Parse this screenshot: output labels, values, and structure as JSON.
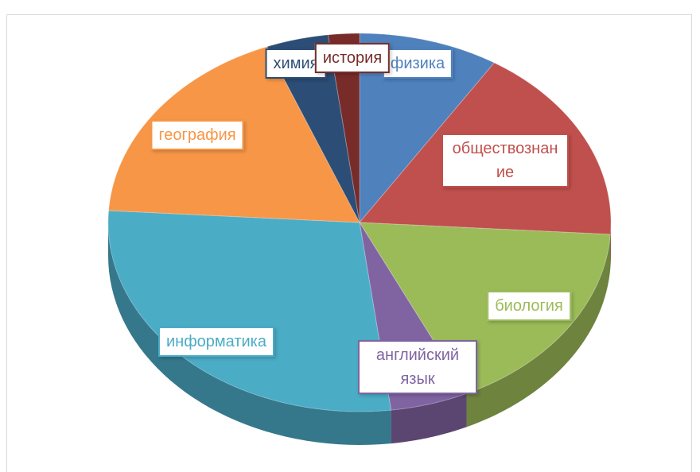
{
  "chart_data": {
    "type": "pie",
    "categories": [
      "физика",
      "обществознание",
      "биология",
      "английский язык",
      "информатика",
      "география",
      "химия",
      "история"
    ],
    "values": [
      9,
      17,
      17,
      5,
      28,
      18,
      4,
      2
    ],
    "colors": [
      "#4f81bd",
      "#c0504d",
      "#9bbb59",
      "#8064a2",
      "#4bacc6",
      "#f79646",
      "#2c4d75",
      "#772c2a"
    ]
  }
}
